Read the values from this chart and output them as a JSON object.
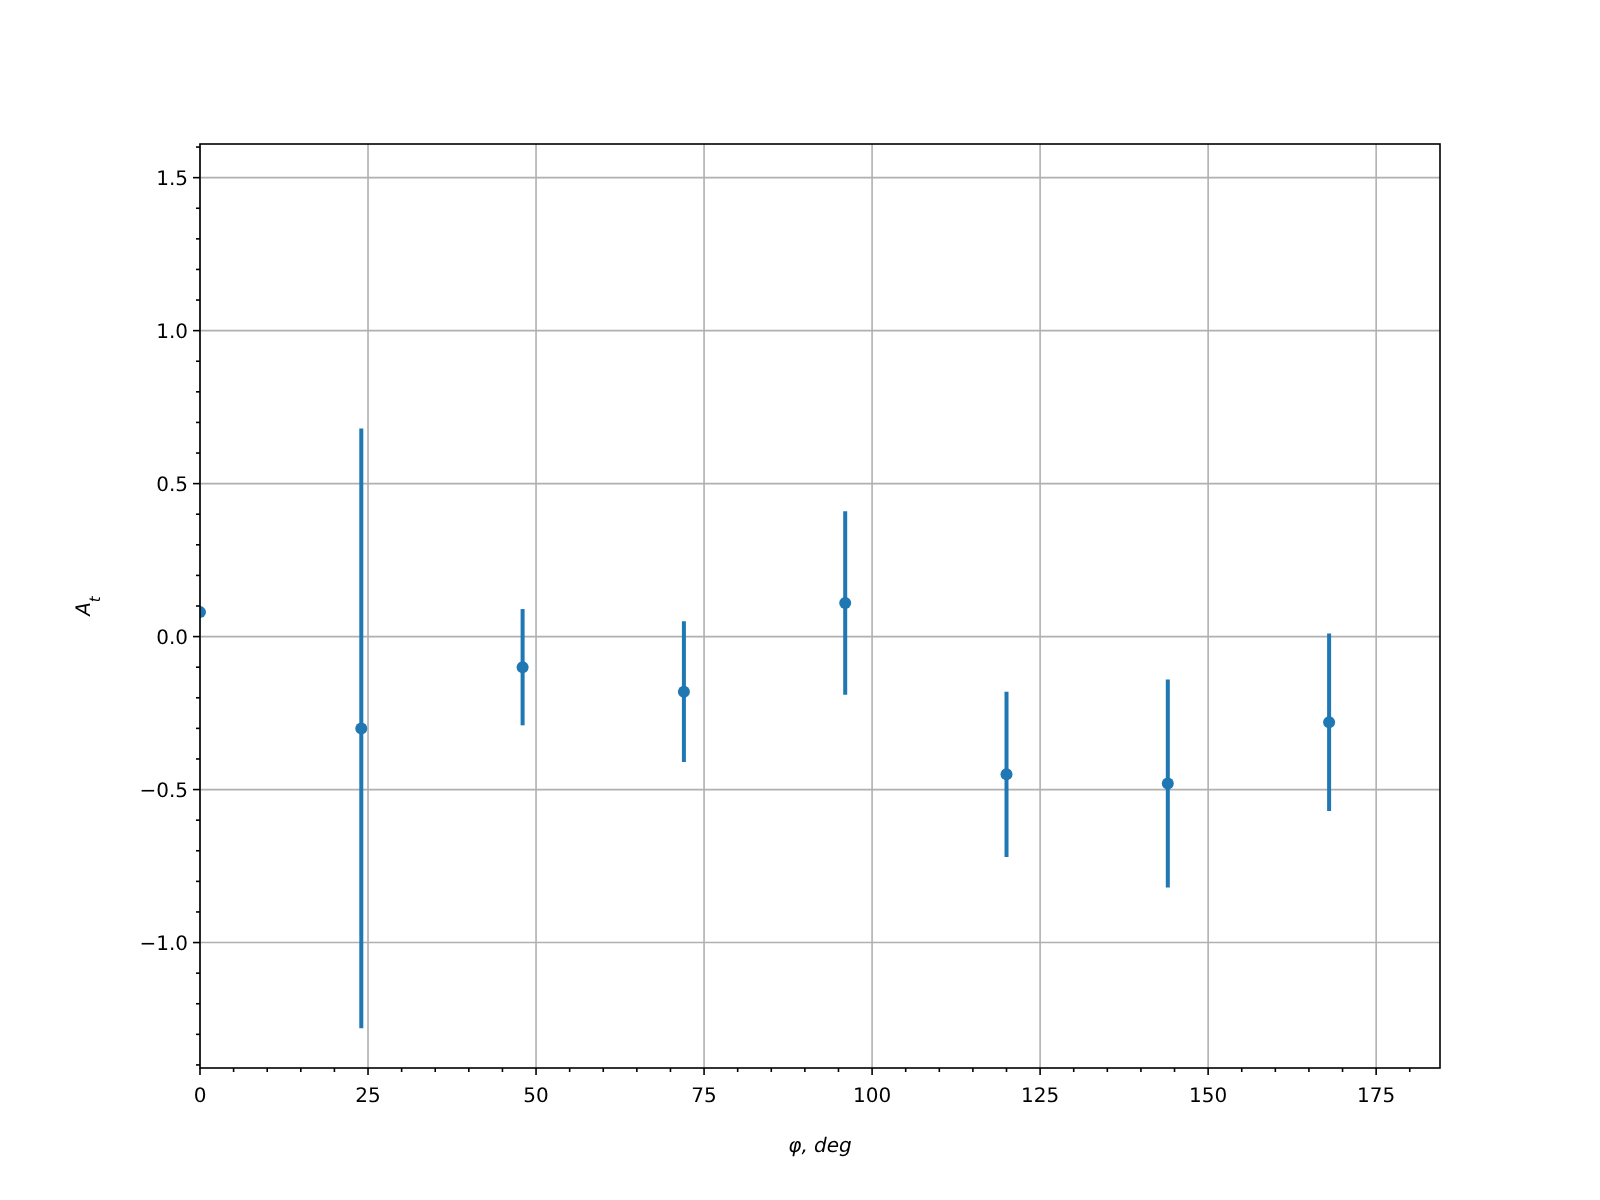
{
  "chart_data": {
    "type": "scatter",
    "xlabel": "φ, deg",
    "ylabel": "A$_{t}$",
    "x": [
      0,
      24,
      48,
      72,
      96,
      120,
      144,
      168
    ],
    "series": [
      {
        "color": "#1f77b4",
        "values": [
          0.08,
          -0.3,
          -0.1,
          -0.18,
          0.11,
          -0.45,
          -0.48,
          -0.28
        ],
        "errors": [
          null,
          0.98,
          0.19,
          0.23,
          0.3,
          0.27,
          0.34,
          0.29
        ]
      }
    ],
    "xlim": [
      0,
      184.5
    ],
    "ylim": [
      -1.41,
      1.61
    ],
    "xticks": [
      0,
      {
        "value": 5,
        "label": null
      },
      {
        "value": 10,
        "label": null
      },
      {
        "value": 15,
        "label": null
      },
      {
        "value": 20,
        "label": null
      },
      25,
      {
        "value": 30,
        "label": null
      },
      {
        "value": 35,
        "label": null
      },
      {
        "value": 40,
        "label": null
      },
      {
        "value": 45,
        "label": null
      },
      50,
      {
        "value": 55,
        "label": null
      },
      {
        "value": 60,
        "label": null
      },
      {
        "value": 65,
        "label": null
      },
      {
        "value": 70,
        "label": null
      },
      75,
      {
        "value": 80,
        "label": null
      },
      {
        "value": 85,
        "label": null
      },
      {
        "value": 90,
        "label": null
      },
      {
        "value": 95,
        "label": null
      },
      100,
      {
        "value": 105,
        "label": null
      },
      {
        "value": 110,
        "label": null
      },
      {
        "value": 115,
        "label": null
      },
      {
        "value": 120,
        "label": null
      },
      125,
      {
        "value": 130,
        "label": null
      },
      {
        "value": 135,
        "label": null
      },
      {
        "value": 140,
        "label": null
      },
      {
        "value": 145,
        "label": null
      },
      150,
      {
        "value": 155,
        "label": null
      },
      {
        "value": 160,
        "label": null
      },
      {
        "value": 165,
        "label": null
      },
      {
        "value": 170,
        "label": null
      },
      175,
      {
        "value": 180,
        "label": null
      }
    ],
    "yticks": [
      {
        "value": -1.4,
        "label": null
      },
      {
        "value": -1.3,
        "label": null
      },
      {
        "value": -1.2,
        "label": null
      },
      {
        "value": -1.1,
        "label": null
      },
      {
        "value": -1.0,
        "label": "−1.0"
      },
      {
        "value": -0.9,
        "label": null
      },
      {
        "value": -0.8,
        "label": null
      },
      {
        "value": -0.7,
        "label": null
      },
      {
        "value": -0.6,
        "label": null
      },
      {
        "value": -0.5,
        "label": "−0.5"
      },
      {
        "value": -0.4,
        "label": null
      },
      {
        "value": -0.3,
        "label": null
      },
      {
        "value": -0.2,
        "label": null
      },
      {
        "value": -0.1,
        "label": null
      },
      {
        "value": 0,
        "label": "0.0"
      },
      {
        "value": 0.1,
        "label": null
      },
      {
        "value": 0.2,
        "label": null
      },
      {
        "value": 0.3,
        "label": null
      },
      {
        "value": 0.4,
        "label": null
      },
      {
        "value": 0.5,
        "label": "0.5"
      },
      {
        "value": 0.6,
        "label": null
      },
      {
        "value": 0.7,
        "label": null
      },
      {
        "value": 0.8,
        "label": null
      },
      {
        "value": 0.9,
        "label": null
      },
      {
        "value": 1.0,
        "label": "1.0"
      },
      {
        "value": 1.1,
        "label": null
      },
      {
        "value": 1.2,
        "label": null
      },
      {
        "value": 1.3,
        "label": null
      },
      {
        "value": 1.4,
        "label": null
      },
      {
        "value": 1.5,
        "label": "1.5"
      },
      {
        "value": 1.6,
        "label": null
      }
    ],
    "grid": true,
    "marker": "circle"
  }
}
